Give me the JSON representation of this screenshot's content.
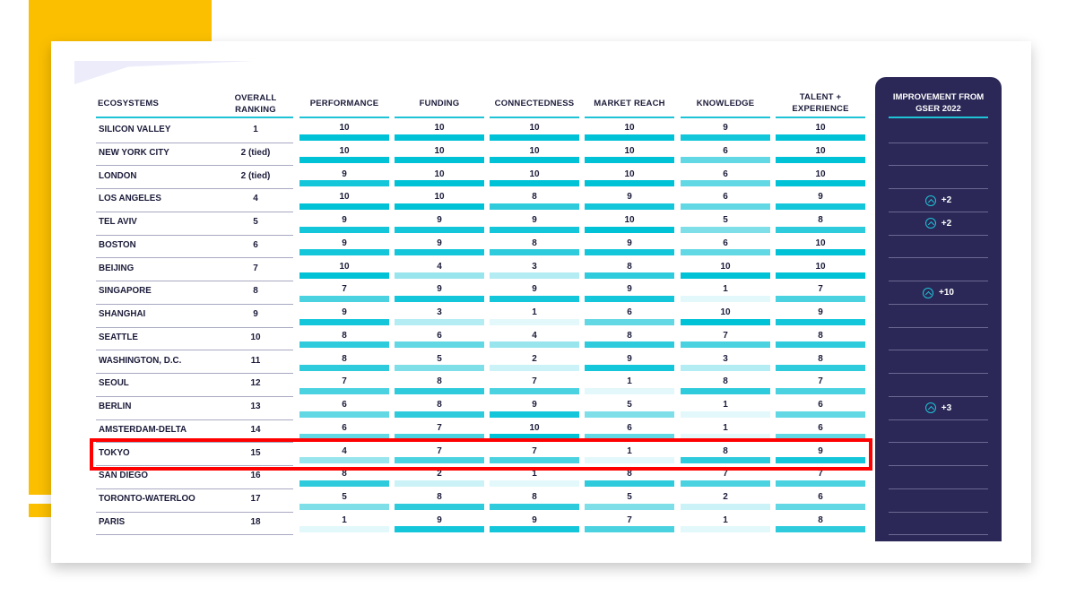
{
  "colors": {
    "accent_yellow": "#fbbf00",
    "panel_navy": "#2b2857",
    "teal_scale": {
      "10": "#00c2d6",
      "9": "#14c6da",
      "8": "#2ecbdc",
      "7": "#4ad2e1",
      "6": "#62d8e4",
      "5": "#7fdfe9",
      "4": "#98e5ed",
      "3": "#b3ecf2",
      "2": "#cbf2f6",
      "1": "#e3f8fa"
    },
    "highlight": "#ff0000"
  },
  "headers": {
    "ecosystems": "ECOSYSTEMS",
    "overall_ranking": "OVERALL RANKING",
    "performance": "PERFORMANCE",
    "funding": "FUNDING",
    "connectedness": "CONNECTEDNESS",
    "market_reach": "MARKET REACH",
    "knowledge": "KNOWLEDGE",
    "talent": "TALENT + EXPERIENCE",
    "improvement": "IMPROVEMENT FROM GSER 2022"
  },
  "rows": [
    {
      "name": "SILICON VALLEY",
      "rank": "1",
      "scores": [
        10,
        10,
        10,
        10,
        9,
        10
      ],
      "improvement": ""
    },
    {
      "name": "NEW YORK CITY",
      "rank": "2 (tied)",
      "scores": [
        10,
        10,
        10,
        10,
        6,
        10
      ],
      "improvement": ""
    },
    {
      "name": "LONDON",
      "rank": "2 (tied)",
      "scores": [
        9,
        10,
        10,
        10,
        6,
        10
      ],
      "improvement": ""
    },
    {
      "name": "LOS ANGELES",
      "rank": "4",
      "scores": [
        10,
        10,
        8,
        9,
        6,
        9
      ],
      "improvement": "+2"
    },
    {
      "name": "TEL AVIV",
      "rank": "5",
      "scores": [
        9,
        9,
        9,
        10,
        5,
        8
      ],
      "improvement": "+2"
    },
    {
      "name": "BOSTON",
      "rank": "6",
      "scores": [
        9,
        9,
        8,
        9,
        6,
        10
      ],
      "improvement": ""
    },
    {
      "name": "BEIJING",
      "rank": "7",
      "scores": [
        10,
        4,
        3,
        8,
        10,
        10
      ],
      "improvement": ""
    },
    {
      "name": "SINGAPORE",
      "rank": "8",
      "scores": [
        7,
        9,
        9,
        9,
        1,
        7
      ],
      "improvement": "+10"
    },
    {
      "name": "SHANGHAI",
      "rank": "9",
      "scores": [
        9,
        3,
        1,
        6,
        10,
        9
      ],
      "improvement": ""
    },
    {
      "name": "SEATTLE",
      "rank": "10",
      "scores": [
        8,
        6,
        4,
        8,
        7,
        8
      ],
      "improvement": ""
    },
    {
      "name": "WASHINGTON, D.C.",
      "rank": "11",
      "scores": [
        8,
        5,
        2,
        9,
        3,
        8
      ],
      "improvement": ""
    },
    {
      "name": "SEOUL",
      "rank": "12",
      "scores": [
        7,
        8,
        7,
        1,
        8,
        7
      ],
      "improvement": ""
    },
    {
      "name": "BERLIN",
      "rank": "13",
      "scores": [
        6,
        8,
        9,
        5,
        1,
        6
      ],
      "improvement": "+3"
    },
    {
      "name": "AMSTERDAM-DELTA",
      "rank": "14",
      "scores": [
        6,
        7,
        10,
        6,
        1,
        6
      ],
      "improvement": ""
    },
    {
      "name": "TOKYO",
      "rank": "15",
      "scores": [
        4,
        7,
        7,
        1,
        8,
        9
      ],
      "improvement": "",
      "highlighted": true
    },
    {
      "name": "SAN DIEGO",
      "rank": "16",
      "scores": [
        8,
        2,
        1,
        8,
        7,
        7
      ],
      "improvement": ""
    },
    {
      "name": "TORONTO-WATERLOO",
      "rank": "17",
      "scores": [
        5,
        8,
        8,
        5,
        2,
        6
      ],
      "improvement": ""
    },
    {
      "name": "PARIS",
      "rank": "18",
      "scores": [
        1,
        9,
        9,
        7,
        1,
        8
      ],
      "improvement": ""
    }
  ],
  "chart_data": {
    "type": "table",
    "title": "",
    "columns": [
      "ECOSYSTEMS",
      "OVERALL RANKING",
      "PERFORMANCE",
      "FUNDING",
      "CONNECTEDNESS",
      "MARKET REACH",
      "KNOWLEDGE",
      "TALENT + EXPERIENCE",
      "IMPROVEMENT FROM GSER 2022"
    ],
    "categories": [
      "SILICON VALLEY",
      "NEW YORK CITY",
      "LONDON",
      "LOS ANGELES",
      "TEL AVIV",
      "BOSTON",
      "BEIJING",
      "SINGAPORE",
      "SHANGHAI",
      "SEATTLE",
      "WASHINGTON, D.C.",
      "SEOUL",
      "BERLIN",
      "AMSTERDAM-DELTA",
      "TOKYO",
      "SAN DIEGO",
      "TORONTO-WATERLOO",
      "PARIS"
    ],
    "overall_ranking": [
      "1",
      "2 (tied)",
      "2 (tied)",
      "4",
      "5",
      "6",
      "7",
      "8",
      "9",
      "10",
      "11",
      "12",
      "13",
      "14",
      "15",
      "16",
      "17",
      "18"
    ],
    "series": [
      {
        "name": "PERFORMANCE",
        "values": [
          10,
          10,
          9,
          10,
          9,
          9,
          10,
          7,
          9,
          8,
          8,
          7,
          6,
          6,
          4,
          8,
          5,
          1
        ]
      },
      {
        "name": "FUNDING",
        "values": [
          10,
          10,
          10,
          10,
          9,
          9,
          4,
          9,
          3,
          6,
          5,
          8,
          8,
          7,
          7,
          2,
          8,
          9
        ]
      },
      {
        "name": "CONNECTEDNESS",
        "values": [
          10,
          10,
          10,
          8,
          9,
          8,
          3,
          9,
          1,
          4,
          2,
          7,
          9,
          10,
          7,
          1,
          8,
          9
        ]
      },
      {
        "name": "MARKET REACH",
        "values": [
          10,
          10,
          10,
          9,
          10,
          9,
          8,
          9,
          6,
          8,
          9,
          1,
          5,
          6,
          1,
          8,
          5,
          7
        ]
      },
      {
        "name": "KNOWLEDGE",
        "values": [
          9,
          6,
          6,
          6,
          5,
          6,
          10,
          1,
          10,
          7,
          3,
          8,
          1,
          1,
          8,
          7,
          2,
          1
        ]
      },
      {
        "name": "TALENT + EXPERIENCE",
        "values": [
          10,
          10,
          10,
          9,
          8,
          10,
          10,
          7,
          9,
          8,
          8,
          7,
          6,
          6,
          9,
          7,
          6,
          8
        ]
      }
    ],
    "improvement_from_gser_2022": {
      "LOS ANGELES": "+2",
      "TEL AVIV": "+2",
      "SINGAPORE": "+10",
      "BERLIN": "+3"
    },
    "highlighted_row": "TOKYO",
    "ylim": [
      1,
      10
    ]
  }
}
